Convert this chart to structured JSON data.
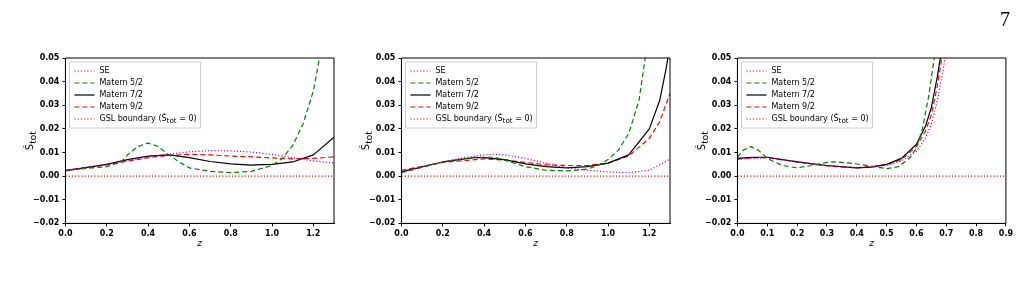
{
  "chart_data": [
    {
      "type": "line",
      "xlabel": "z",
      "ylabel": "Ṡ$_{tot}$",
      "xlim": [
        0,
        1.3
      ],
      "xticks": [
        {
          "value": 0,
          "label": "0.0"
        },
        {
          "value": 0.2,
          "label": "0.2"
        },
        {
          "value": 0.4,
          "label": "0.4"
        },
        {
          "value": 0.6,
          "label": "0.6"
        },
        {
          "value": 0.8,
          "label": "0.8"
        },
        {
          "value": 1,
          "label": "1.0"
        },
        {
          "value": 1.2,
          "label": "1.2"
        }
      ],
      "ylim": [
        -0.02,
        0.05
      ],
      "yticks": [
        {
          "value": -0.02,
          "label": "−0.02"
        },
        {
          "value": -0.01,
          "label": "−0.01"
        },
        {
          "value": 0,
          "label": "0.00"
        },
        0.01,
        0.02,
        0.03,
        0.04,
        0.05
      ],
      "grid": false,
      "legend": "top left",
      "marker": "none",
      "series": [
        {
          "name": "SE",
          "color": "#bf00bf",
          "line_style": "dotted",
          "x": [
            0,
            0.2,
            0.4,
            0.5,
            0.6,
            0.7,
            0.8,
            0.9,
            1.0,
            1.1,
            1.2,
            1.3
          ],
          "values": [
            0.0025,
            0.005,
            0.0082,
            0.0093,
            0.0103,
            0.0108,
            0.0107,
            0.0102,
            0.0092,
            0.0078,
            0.0065,
            0.0055
          ]
        },
        {
          "name": "Matern 5/2",
          "color": "#008000",
          "line_style": "dashed",
          "x": [
            0,
            0.1,
            0.2,
            0.27,
            0.3,
            0.35,
            0.4,
            0.45,
            0.5,
            0.55,
            0.6,
            0.7,
            0.8,
            0.9,
            1.0,
            1.05,
            1.1,
            1.15,
            1.2,
            1.23
          ],
          "values": [
            0.0025,
            0.0033,
            0.004,
            0.006,
            0.009,
            0.0125,
            0.014,
            0.0125,
            0.009,
            0.006,
            0.0035,
            0.002,
            0.0015,
            0.002,
            0.0045,
            0.0075,
            0.013,
            0.022,
            0.036,
            0.05
          ]
        },
        {
          "name": "Matern 7/2",
          "color": "#000000",
          "line_style": "solid",
          "x": [
            0,
            0.2,
            0.3,
            0.4,
            0.5,
            0.6,
            0.7,
            0.8,
            0.9,
            1.0,
            1.1,
            1.2,
            1.3
          ],
          "values": [
            0.0022,
            0.005,
            0.007,
            0.0085,
            0.009,
            0.0078,
            0.0062,
            0.0052,
            0.0047,
            0.005,
            0.006,
            0.009,
            0.0165
          ]
        },
        {
          "name": "Matern 9/2",
          "color": "#ff0000",
          "line_style": "dashed",
          "x": [
            0,
            0.2,
            0.4,
            0.5,
            0.6,
            0.7,
            0.8,
            0.9,
            1.0,
            1.1,
            1.2,
            1.3
          ],
          "values": [
            0.0025,
            0.0048,
            0.0078,
            0.0088,
            0.0092,
            0.009,
            0.0085,
            0.0082,
            0.0077,
            0.0073,
            0.0075,
            0.0082
          ]
        },
        {
          "name": "GSL boundary (Ṡ$_{tot}$ = 0)",
          "color": "#ff0000",
          "line_style": "dotted",
          "x": [
            0,
            1.3
          ],
          "values": [
            0,
            0
          ]
        }
      ]
    },
    {
      "type": "line",
      "xlabel": "z",
      "ylabel": "Ṡ$_{tot}$",
      "xlim": [
        0,
        1.3
      ],
      "xticks": [
        {
          "value": 0,
          "label": "0.0"
        },
        {
          "value": 0.2,
          "label": "0.2"
        },
        {
          "value": 0.4,
          "label": "0.4"
        },
        {
          "value": 0.6,
          "label": "0.6"
        },
        {
          "value": 0.8,
          "label": "0.8"
        },
        {
          "value": 1,
          "label": "1.0"
        },
        {
          "value": 1.2,
          "label": "1.2"
        }
      ],
      "ylim": [
        -0.02,
        0.05
      ],
      "yticks": [
        {
          "value": -0.02,
          "label": "−0.02"
        },
        {
          "value": -0.01,
          "label": "−0.01"
        },
        {
          "value": 0,
          "label": "0.00"
        },
        0.01,
        0.02,
        0.03,
        0.04,
        0.05
      ],
      "grid": false,
      "legend": "top left",
      "marker": "none",
      "series": [
        {
          "name": "SE",
          "color": "#bf00bf",
          "line_style": "dotted",
          "x": [
            0,
            0.2,
            0.3,
            0.4,
            0.45,
            0.5,
            0.6,
            0.7,
            0.8,
            0.9,
            1.0,
            1.1,
            1.2,
            1.3
          ],
          "values": [
            0.0022,
            0.006,
            0.0078,
            0.009,
            0.0093,
            0.009,
            0.0075,
            0.0055,
            0.0035,
            0.0025,
            0.0018,
            0.0015,
            0.0025,
            0.0072
          ]
        },
        {
          "name": "Matern 5/2",
          "color": "#008000",
          "line_style": "dashed",
          "x": [
            0,
            0.2,
            0.35,
            0.45,
            0.5,
            0.6,
            0.7,
            0.8,
            0.9,
            0.95,
            1.0,
            1.05,
            1.1,
            1.15,
            1.18
          ],
          "values": [
            0.0015,
            0.006,
            0.008,
            0.008,
            0.0068,
            0.004,
            0.0025,
            0.0022,
            0.003,
            0.0045,
            0.007,
            0.011,
            0.018,
            0.032,
            0.05
          ]
        },
        {
          "name": "Matern 7/2",
          "color": "#000000",
          "line_style": "solid",
          "x": [
            0,
            0.2,
            0.35,
            0.4,
            0.5,
            0.6,
            0.7,
            0.8,
            0.9,
            1.0,
            1.1,
            1.2,
            1.25,
            1.28,
            1.29
          ],
          "values": [
            0.0018,
            0.006,
            0.0078,
            0.0078,
            0.007,
            0.0052,
            0.004,
            0.0035,
            0.004,
            0.0055,
            0.009,
            0.02,
            0.032,
            0.045,
            0.05
          ]
        },
        {
          "name": "Matern 9/2",
          "color": "#ff0000",
          "line_style": "dashed",
          "x": [
            0,
            0.2,
            0.4,
            0.5,
            0.6,
            0.7,
            0.8,
            0.9,
            1.0,
            1.1,
            1.2,
            1.25,
            1.3
          ],
          "values": [
            0.0025,
            0.0058,
            0.0073,
            0.0068,
            0.0058,
            0.0048,
            0.0045,
            0.0045,
            0.0055,
            0.0085,
            0.016,
            0.023,
            0.035
          ]
        },
        {
          "name": "GSL boundary (Ṡ$_{tot}$ = 0)",
          "color": "#ff0000",
          "line_style": "dotted",
          "x": [
            0,
            1.3
          ],
          "values": [
            0,
            0
          ]
        }
      ]
    },
    {
      "type": "line",
      "xlabel": "z",
      "ylabel": "Ṡ$_{tot}$",
      "annotations": [
        "7"
      ],
      "xlim": [
        0,
        0.9
      ],
      "xticks": [
        {
          "value": 0,
          "label": "0.0"
        },
        0.1,
        0.2,
        0.3,
        0.4,
        0.5,
        0.6,
        0.7,
        0.8,
        0.9
      ],
      "ylim": [
        -0.02,
        0.05
      ],
      "yticks": [
        {
          "value": -0.02,
          "label": "−0.02"
        },
        {
          "value": -0.01,
          "label": "−0.01"
        },
        {
          "value": 0,
          "label": "0.00"
        },
        0.01,
        0.02,
        0.03,
        0.04,
        0.05
      ],
      "grid": false,
      "legend": "top left",
      "marker": "none",
      "series": [
        {
          "name": "SE",
          "color": "#bf00bf",
          "line_style": "dotted",
          "x": [
            0,
            0.1,
            0.2,
            0.3,
            0.4,
            0.5,
            0.55,
            0.6,
            0.63,
            0.65,
            0.67,
            0.69,
            0.695
          ],
          "values": [
            0.0072,
            0.0078,
            0.0062,
            0.0045,
            0.0035,
            0.0045,
            0.0065,
            0.0105,
            0.016,
            0.022,
            0.032,
            0.045,
            0.05
          ]
        },
        {
          "name": "Matern 5/2",
          "color": "#008000",
          "line_style": "dashed",
          "x": [
            0,
            0.02,
            0.045,
            0.07,
            0.1,
            0.15,
            0.2,
            0.25,
            0.3,
            0.33,
            0.38,
            0.45,
            0.5,
            0.54,
            0.58,
            0.6,
            0.62,
            0.64,
            0.66
          ],
          "values": [
            0.008,
            0.011,
            0.0125,
            0.011,
            0.0075,
            0.0045,
            0.0035,
            0.0045,
            0.0058,
            0.006,
            0.0055,
            0.0042,
            0.0032,
            0.004,
            0.008,
            0.012,
            0.02,
            0.033,
            0.05
          ]
        },
        {
          "name": "Matern 7/2",
          "color": "#000000",
          "line_style": "solid",
          "x": [
            0,
            0.05,
            0.1,
            0.2,
            0.3,
            0.4,
            0.45,
            0.5,
            0.55,
            0.6,
            0.63,
            0.65,
            0.67,
            0.68
          ],
          "values": [
            0.0075,
            0.008,
            0.008,
            0.006,
            0.0045,
            0.0035,
            0.0038,
            0.005,
            0.0075,
            0.0135,
            0.021,
            0.029,
            0.042,
            0.05
          ]
        },
        {
          "name": "Matern 9/2",
          "color": "#ff0000",
          "line_style": "dashed",
          "x": [
            0,
            0.05,
            0.1,
            0.2,
            0.3,
            0.4,
            0.5,
            0.55,
            0.6,
            0.63,
            0.65,
            0.67,
            0.685
          ],
          "values": [
            0.0072,
            0.0078,
            0.0078,
            0.006,
            0.0043,
            0.0035,
            0.0048,
            0.007,
            0.0125,
            0.019,
            0.026,
            0.038,
            0.05
          ]
        },
        {
          "name": "GSL boundary (Ṡ$_{tot}$ = 0)",
          "color": "#ff0000",
          "line_style": "dotted",
          "x": [
            0,
            0.9
          ],
          "values": [
            0,
            0
          ]
        }
      ]
    }
  ]
}
